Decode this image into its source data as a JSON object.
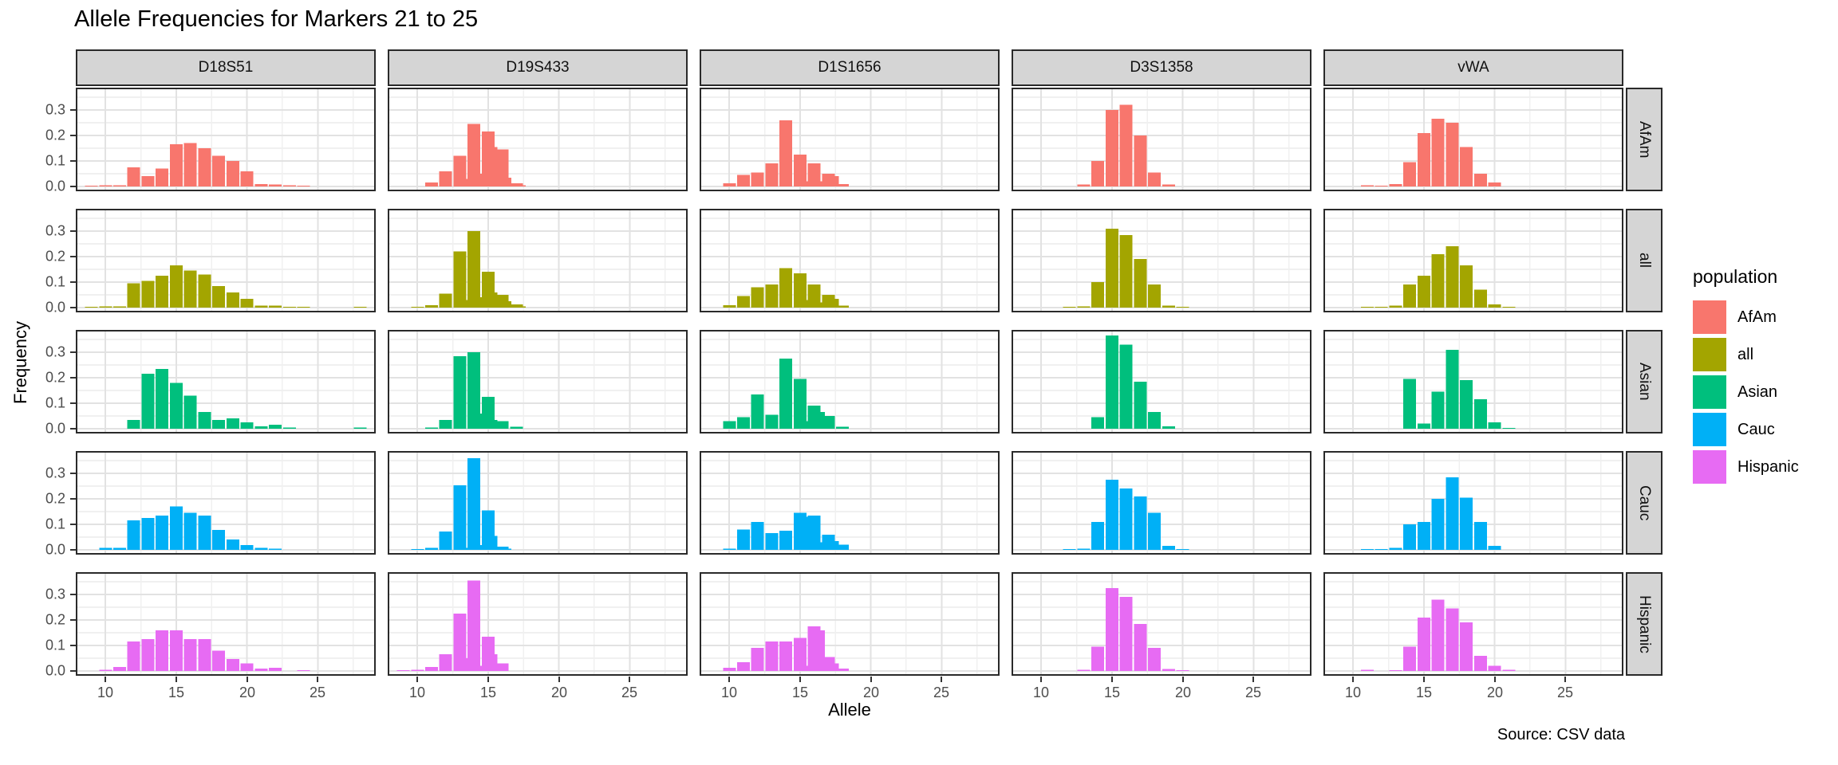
{
  "title": "Allele Frequencies for Markers 21 to 25",
  "axes": {
    "x_title": "Allele",
    "y_title": "Frequency",
    "x_tick_labels": [
      "10",
      "15",
      "20",
      "25"
    ],
    "y_tick_labels": [
      "0.0",
      "0.1",
      "0.2",
      "0.3"
    ]
  },
  "source_note": "Source: CSV data",
  "legend": {
    "title": "population",
    "entries": [
      {
        "label": "AfAm",
        "color": "#F8766D"
      },
      {
        "label": "all",
        "color": "#A3A500"
      },
      {
        "label": "Asian",
        "color": "#00BF7D"
      },
      {
        "label": "Cauc",
        "color": "#00B0F6"
      },
      {
        "label": "Hispanic",
        "color": "#E76BF3"
      }
    ]
  },
  "facets": {
    "columns": [
      "D18S51",
      "D19S433",
      "D1S1656",
      "D3S1358",
      "vWA"
    ],
    "rows": [
      "AfAm",
      "all",
      "Asian",
      "Cauc",
      "Hispanic"
    ]
  },
  "chart_data": {
    "type": "bar",
    "title": "Allele Frequencies for Markers 21 to 25",
    "xlabel": "Allele",
    "ylabel": "Frequency",
    "x_ticks": [
      10,
      15,
      20,
      25
    ],
    "y_ticks": [
      0.0,
      0.1,
      0.2,
      0.3
    ],
    "x_minor_gridlines": [
      12.5,
      17.5,
      22.5,
      27.5
    ],
    "y_minor_gridlines": [
      0.05,
      0.15,
      0.25,
      0.35
    ],
    "x_range": [
      7.9,
      29.1
    ],
    "y_range": [
      0,
      0.39
    ],
    "grid": true,
    "legend_position": "right",
    "bar_width": 0.9,
    "panels": [
      {
        "marker": "D18S51",
        "population": "AfAm",
        "x": [
          9,
          10,
          11,
          12,
          13,
          14,
          15,
          16,
          17,
          18,
          19,
          20,
          21,
          22,
          23,
          24
        ],
        "y": [
          0.003,
          0.004,
          0.004,
          0.075,
          0.04,
          0.07,
          0.165,
          0.17,
          0.15,
          0.12,
          0.1,
          0.06,
          0.01,
          0.008,
          0.005,
          0.003
        ]
      },
      {
        "marker": "D19S433",
        "population": "AfAm",
        "x": [
          11,
          12,
          13,
          13.2,
          14,
          14.2,
          15,
          15.2,
          16,
          16.2,
          17,
          17.2
        ],
        "y": [
          0.015,
          0.06,
          0.12,
          0.03,
          0.245,
          0.05,
          0.215,
          0.155,
          0.145,
          0.035,
          0.012,
          0.004
        ]
      },
      {
        "marker": "D1S1656",
        "population": "AfAm",
        "x": [
          10,
          11,
          12,
          13,
          14,
          15,
          15.3,
          16,
          16.3,
          17,
          17.3,
          18
        ],
        "y": [
          0.012,
          0.045,
          0.055,
          0.09,
          0.26,
          0.125,
          0.02,
          0.09,
          0.02,
          0.05,
          0.04,
          0.01
        ]
      },
      {
        "marker": "D3S1358",
        "population": "AfAm",
        "x": [
          13,
          14,
          15,
          16,
          17,
          18,
          19
        ],
        "y": [
          0.008,
          0.1,
          0.3,
          0.32,
          0.2,
          0.055,
          0.008
        ]
      },
      {
        "marker": "vWA",
        "population": "AfAm",
        "x": [
          11,
          12,
          13,
          14,
          15,
          16,
          17,
          18,
          19,
          20
        ],
        "y": [
          0.004,
          0.003,
          0.01,
          0.095,
          0.21,
          0.265,
          0.25,
          0.155,
          0.05,
          0.015
        ]
      },
      {
        "marker": "D18S51",
        "population": "all",
        "x": [
          9,
          10,
          11,
          12,
          13,
          14,
          15,
          16,
          17,
          18,
          19,
          20,
          21,
          22,
          23,
          24,
          28
        ],
        "y": [
          0.003,
          0.004,
          0.005,
          0.095,
          0.105,
          0.125,
          0.165,
          0.145,
          0.13,
          0.085,
          0.06,
          0.035,
          0.008,
          0.008,
          0.003,
          0.002,
          0.002
        ]
      },
      {
        "marker": "D19S433",
        "population": "all",
        "x": [
          10,
          11,
          12,
          13,
          13.2,
          14,
          14.2,
          15,
          15.2,
          16,
          16.2,
          17,
          17.2
        ],
        "y": [
          0.003,
          0.01,
          0.055,
          0.22,
          0.03,
          0.3,
          0.04,
          0.14,
          0.06,
          0.05,
          0.025,
          0.012,
          0.004
        ]
      },
      {
        "marker": "D1S1656",
        "population": "all",
        "x": [
          10,
          11,
          12,
          13,
          14,
          15,
          15.3,
          16,
          16.3,
          17,
          17.3,
          18
        ],
        "y": [
          0.01,
          0.045,
          0.08,
          0.09,
          0.155,
          0.135,
          0.03,
          0.09,
          0.02,
          0.05,
          0.035,
          0.008
        ]
      },
      {
        "marker": "D3S1358",
        "population": "all",
        "x": [
          12,
          13,
          14,
          15,
          16,
          17,
          18,
          19,
          20
        ],
        "y": [
          0.003,
          0.005,
          0.1,
          0.31,
          0.285,
          0.19,
          0.09,
          0.008,
          0.003
        ]
      },
      {
        "marker": "vWA",
        "population": "all",
        "x": [
          11,
          12,
          13,
          14,
          15,
          16,
          17,
          18,
          19,
          20,
          21
        ],
        "y": [
          0.003,
          0.003,
          0.008,
          0.09,
          0.125,
          0.21,
          0.24,
          0.165,
          0.07,
          0.012,
          0.003
        ]
      },
      {
        "marker": "D18S51",
        "population": "Asian",
        "x": [
          12,
          13,
          14,
          15,
          16,
          17,
          18,
          19,
          20,
          21,
          22,
          23,
          28
        ],
        "y": [
          0.035,
          0.215,
          0.235,
          0.18,
          0.13,
          0.065,
          0.035,
          0.04,
          0.025,
          0.01,
          0.015,
          0.005,
          0.004
        ]
      },
      {
        "marker": "D19S433",
        "population": "Asian",
        "x": [
          11,
          12,
          13,
          14,
          14.2,
          15,
          15.2,
          16,
          17
        ],
        "y": [
          0.005,
          0.035,
          0.285,
          0.3,
          0.06,
          0.125,
          0.035,
          0.03,
          0.008
        ]
      },
      {
        "marker": "D1S1656",
        "population": "Asian",
        "x": [
          10,
          11,
          12,
          13,
          14,
          15,
          15.3,
          16,
          16.3,
          17,
          18
        ],
        "y": [
          0.03,
          0.045,
          0.135,
          0.055,
          0.275,
          0.195,
          0.03,
          0.09,
          0.065,
          0.05,
          0.008
        ]
      },
      {
        "marker": "D3S1358",
        "population": "Asian",
        "x": [
          14,
          15,
          16,
          17,
          18,
          19
        ],
        "y": [
          0.045,
          0.365,
          0.33,
          0.185,
          0.065,
          0.01
        ]
      },
      {
        "marker": "vWA",
        "population": "Asian",
        "x": [
          14,
          15,
          16,
          17,
          18,
          19,
          20,
          21
        ],
        "y": [
          0.195,
          0.02,
          0.145,
          0.31,
          0.19,
          0.115,
          0.025,
          0.003
        ]
      },
      {
        "marker": "D18S51",
        "population": "Cauc",
        "x": [
          10,
          11,
          12,
          13,
          14,
          15,
          16,
          17,
          18,
          19,
          20,
          21,
          22
        ],
        "y": [
          0.008,
          0.008,
          0.115,
          0.125,
          0.135,
          0.17,
          0.145,
          0.135,
          0.078,
          0.04,
          0.018,
          0.008,
          0.005
        ]
      },
      {
        "marker": "D19S433",
        "population": "Cauc",
        "x": [
          10,
          11,
          12,
          13,
          13.2,
          14,
          14.2,
          15,
          15.2,
          16,
          16.2
        ],
        "y": [
          0.003,
          0.008,
          0.072,
          0.253,
          0.008,
          0.36,
          0.018,
          0.155,
          0.055,
          0.012,
          0.004
        ]
      },
      {
        "marker": "D1S1656",
        "population": "Cauc",
        "x": [
          10,
          11,
          12,
          13,
          14,
          15,
          15.3,
          16,
          16.3,
          17,
          17.3,
          18
        ],
        "y": [
          0.005,
          0.08,
          0.11,
          0.065,
          0.075,
          0.145,
          0.13,
          0.135,
          0.03,
          0.06,
          0.035,
          0.02
        ]
      },
      {
        "marker": "D3S1358",
        "population": "Cauc",
        "x": [
          12,
          13,
          14,
          15,
          16,
          17,
          18,
          19,
          20
        ],
        "y": [
          0.003,
          0.005,
          0.11,
          0.275,
          0.24,
          0.21,
          0.145,
          0.015,
          0.003
        ]
      },
      {
        "marker": "vWA",
        "population": "Cauc",
        "x": [
          11,
          12,
          13,
          14,
          15,
          16,
          17,
          18,
          19,
          20
        ],
        "y": [
          0.003,
          0.003,
          0.008,
          0.1,
          0.11,
          0.2,
          0.285,
          0.205,
          0.11,
          0.015
        ]
      },
      {
        "marker": "D18S51",
        "population": "Hispanic",
        "x": [
          10,
          11,
          12,
          13,
          14,
          15,
          16,
          17,
          18,
          19,
          20,
          21,
          22,
          24
        ],
        "y": [
          0.004,
          0.015,
          0.115,
          0.125,
          0.16,
          0.16,
          0.125,
          0.125,
          0.08,
          0.047,
          0.03,
          0.01,
          0.012,
          0.003
        ]
      },
      {
        "marker": "D19S433",
        "population": "Hispanic",
        "x": [
          9,
          10,
          11,
          12,
          13,
          13.2,
          14,
          14.2,
          15,
          15.2,
          16
        ],
        "y": [
          0.003,
          0.004,
          0.015,
          0.065,
          0.225,
          0.05,
          0.355,
          0.02,
          0.135,
          0.065,
          0.03
        ]
      },
      {
        "marker": "D1S1656",
        "population": "Hispanic",
        "x": [
          10,
          11,
          12,
          13,
          14,
          15,
          15.3,
          16,
          16.3,
          17,
          17.3,
          18
        ],
        "y": [
          0.012,
          0.035,
          0.09,
          0.115,
          0.115,
          0.13,
          0.02,
          0.175,
          0.16,
          0.055,
          0.03,
          0.01
        ]
      },
      {
        "marker": "D3S1358",
        "population": "Hispanic",
        "x": [
          13,
          14,
          15,
          16,
          17,
          18,
          19,
          20
        ],
        "y": [
          0.005,
          0.095,
          0.325,
          0.29,
          0.185,
          0.09,
          0.008,
          0.003
        ]
      },
      {
        "marker": "vWA",
        "population": "Hispanic",
        "x": [
          11,
          13,
          14,
          15,
          16,
          17,
          18,
          19,
          20,
          21
        ],
        "y": [
          0.005,
          0.003,
          0.095,
          0.21,
          0.28,
          0.245,
          0.19,
          0.06,
          0.02,
          0.005
        ]
      }
    ]
  }
}
